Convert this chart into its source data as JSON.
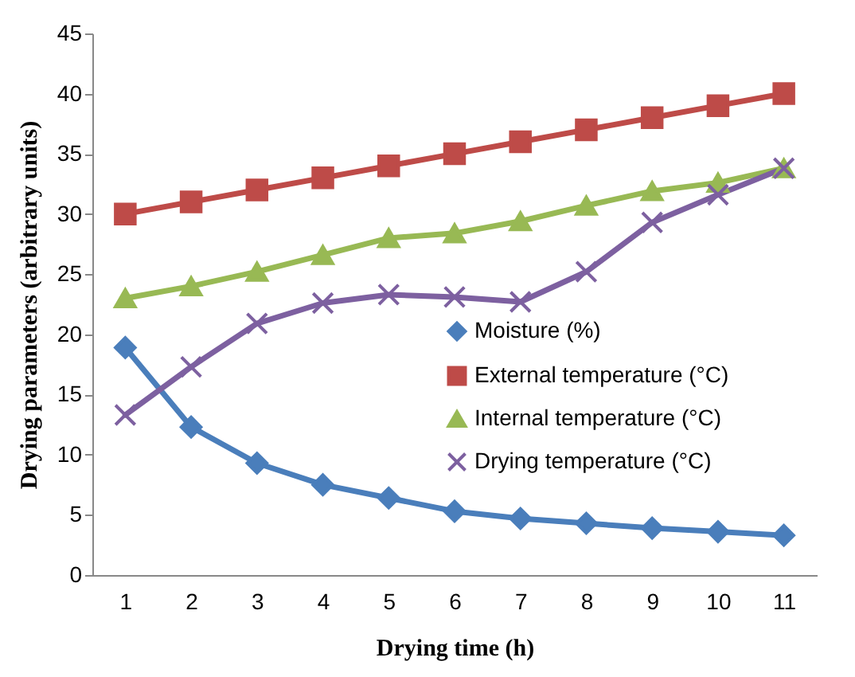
{
  "chart_data": {
    "type": "line",
    "xlabel": "Drying time (h)",
    "ylabel": "Drying parameters (arbitrary units)",
    "categories": [
      "1",
      "2",
      "3",
      "4",
      "5",
      "6",
      "7",
      "8",
      "9",
      "10",
      "11"
    ],
    "ylim": [
      0,
      45
    ],
    "yticks": [
      0,
      5,
      10,
      15,
      20,
      25,
      30,
      35,
      40,
      45
    ],
    "grid": false,
    "legend": "right",
    "series": [
      {
        "name": "Moisture (%)",
        "color": "#4a7ebb",
        "marker": "diamond",
        "values": [
          18.9,
          12.3,
          9.3,
          7.5,
          6.4,
          5.3,
          4.7,
          4.3,
          3.9,
          3.6,
          3.3
        ]
      },
      {
        "name": "External temperature (°C)",
        "color": "#be4b48",
        "marker": "square",
        "values": [
          30,
          31,
          32,
          33,
          34,
          35,
          36,
          37,
          38,
          39,
          40
        ]
      },
      {
        "name": "Internal temperature (°C)",
        "color": "#98b954",
        "marker": "triangle",
        "values": [
          23,
          24,
          25.2,
          26.6,
          28,
          28.4,
          29.4,
          30.7,
          31.9,
          32.6,
          33.8
        ]
      },
      {
        "name": "Drying temperature (°C)",
        "color": "#7d60a0",
        "marker": "cross",
        "values": [
          13.3,
          17.3,
          20.9,
          22.6,
          23.3,
          23.1,
          22.7,
          25.2,
          29.3,
          31.6,
          33.8
        ]
      }
    ]
  }
}
